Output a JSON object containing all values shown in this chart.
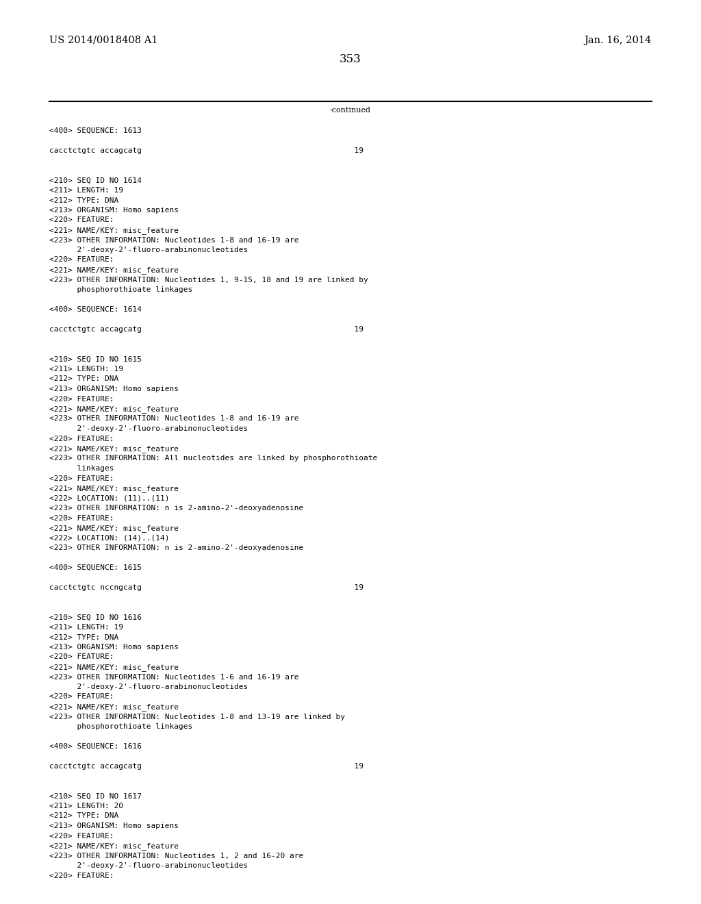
{
  "background_color": "#ffffff",
  "header_left": "US 2014/0018408 A1",
  "header_right": "Jan. 16, 2014",
  "page_number": "353",
  "continued_text": "-continued",
  "font_size_header": 10.5,
  "font_size_body": 8.0,
  "font_size_page": 12,
  "content_lines": [
    {
      "text": "<400> SEQUENCE: 1613"
    },
    {
      "text": ""
    },
    {
      "text": "cacctctgtc accagcatg                                              19"
    },
    {
      "text": ""
    },
    {
      "text": ""
    },
    {
      "text": "<210> SEQ ID NO 1614"
    },
    {
      "text": "<211> LENGTH: 19"
    },
    {
      "text": "<212> TYPE: DNA"
    },
    {
      "text": "<213> ORGANISM: Homo sapiens"
    },
    {
      "text": "<220> FEATURE:"
    },
    {
      "text": "<221> NAME/KEY: misc_feature"
    },
    {
      "text": "<223> OTHER INFORMATION: Nucleotides 1-8 and 16-19 are"
    },
    {
      "text": "      2'-deoxy-2'-fluoro-arabinonucleotides"
    },
    {
      "text": "<220> FEATURE:"
    },
    {
      "text": "<221> NAME/KEY: misc_feature"
    },
    {
      "text": "<223> OTHER INFORMATION: Nucleotides 1, 9-15, 18 and 19 are linked by"
    },
    {
      "text": "      phosphorothioate linkages"
    },
    {
      "text": ""
    },
    {
      "text": "<400> SEQUENCE: 1614"
    },
    {
      "text": ""
    },
    {
      "text": "cacctctgtc accagcatg                                              19"
    },
    {
      "text": ""
    },
    {
      "text": ""
    },
    {
      "text": "<210> SEQ ID NO 1615"
    },
    {
      "text": "<211> LENGTH: 19"
    },
    {
      "text": "<212> TYPE: DNA"
    },
    {
      "text": "<213> ORGANISM: Homo sapiens"
    },
    {
      "text": "<220> FEATURE:"
    },
    {
      "text": "<221> NAME/KEY: misc_feature"
    },
    {
      "text": "<223> OTHER INFORMATION: Nucleotides 1-8 and 16-19 are"
    },
    {
      "text": "      2'-deoxy-2'-fluoro-arabinonucleotides"
    },
    {
      "text": "<220> FEATURE:"
    },
    {
      "text": "<221> NAME/KEY: misc_feature"
    },
    {
      "text": "<223> OTHER INFORMATION: All nucleotides are linked by phosphorothioate"
    },
    {
      "text": "      linkages"
    },
    {
      "text": "<220> FEATURE:"
    },
    {
      "text": "<221> NAME/KEY: misc_feature"
    },
    {
      "text": "<222> LOCATION: (11)..(11)"
    },
    {
      "text": "<223> OTHER INFORMATION: n is 2-amino-2'-deoxyadenosine"
    },
    {
      "text": "<220> FEATURE:"
    },
    {
      "text": "<221> NAME/KEY: misc_feature"
    },
    {
      "text": "<222> LOCATION: (14)..(14)"
    },
    {
      "text": "<223> OTHER INFORMATION: n is 2-amino-2'-deoxyadenosine"
    },
    {
      "text": ""
    },
    {
      "text": "<400> SEQUENCE: 1615"
    },
    {
      "text": ""
    },
    {
      "text": "cacctctgtc nccngcatg                                              19"
    },
    {
      "text": ""
    },
    {
      "text": ""
    },
    {
      "text": "<210> SEQ ID NO 1616"
    },
    {
      "text": "<211> LENGTH: 19"
    },
    {
      "text": "<212> TYPE: DNA"
    },
    {
      "text": "<213> ORGANISM: Homo sapiens"
    },
    {
      "text": "<220> FEATURE:"
    },
    {
      "text": "<221> NAME/KEY: misc_feature"
    },
    {
      "text": "<223> OTHER INFORMATION: Nucleotides 1-6 and 16-19 are"
    },
    {
      "text": "      2'-deoxy-2'-fluoro-arabinonucleotides"
    },
    {
      "text": "<220> FEATURE:"
    },
    {
      "text": "<221> NAME/KEY: misc_feature"
    },
    {
      "text": "<223> OTHER INFORMATION: Nucleotides 1-8 and 13-19 are linked by"
    },
    {
      "text": "      phosphorothioate linkages"
    },
    {
      "text": ""
    },
    {
      "text": "<400> SEQUENCE: 1616"
    },
    {
      "text": ""
    },
    {
      "text": "cacctctgtc accagcatg                                              19"
    },
    {
      "text": ""
    },
    {
      "text": ""
    },
    {
      "text": "<210> SEQ ID NO 1617"
    },
    {
      "text": "<211> LENGTH: 20"
    },
    {
      "text": "<212> TYPE: DNA"
    },
    {
      "text": "<213> ORGANISM: Homo sapiens"
    },
    {
      "text": "<220> FEATURE:"
    },
    {
      "text": "<221> NAME/KEY: misc_feature"
    },
    {
      "text": "<223> OTHER INFORMATION: Nucleotides 1, 2 and 16-20 are"
    },
    {
      "text": "      2'-deoxy-2'-fluoro-arabinonucleotides"
    },
    {
      "text": "<220> FEATURE:"
    }
  ]
}
